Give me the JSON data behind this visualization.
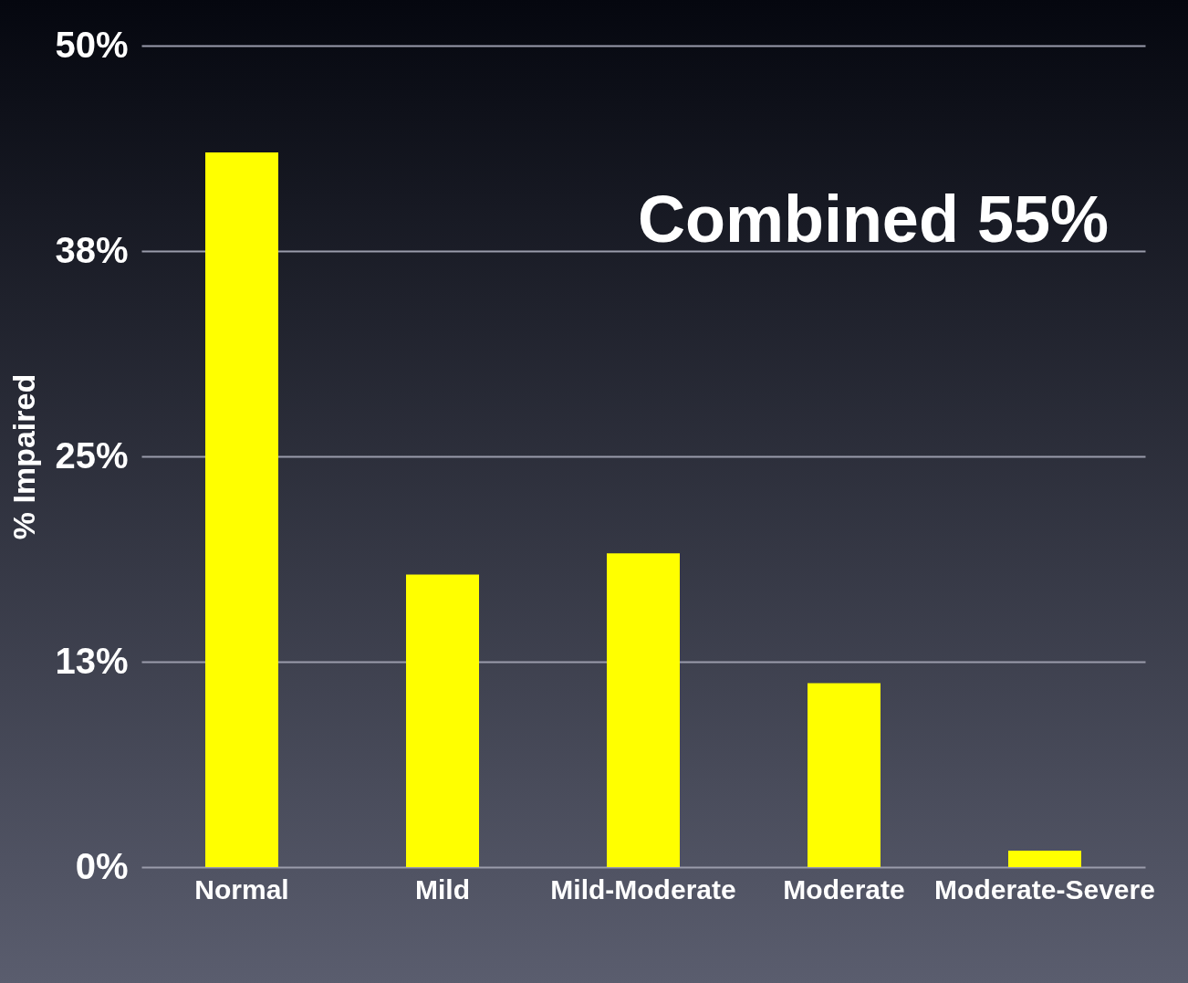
{
  "chart_data": {
    "type": "bar",
    "ylabel": "% Impaired",
    "categories": [
      "Normal",
      "Mild",
      "Mild-Moderate",
      "Moderate",
      "Moderate-Severe"
    ],
    "values": [
      43.5,
      17.8,
      19.1,
      11.2,
      1
    ],
    "color": "#ffff00",
    "ylim": [
      0,
      50
    ],
    "yticks": [
      {
        "value": 0,
        "label": "0%"
      },
      {
        "value": 12.5,
        "label": "13%"
      },
      {
        "value": 25,
        "label": "25%"
      },
      {
        "value": 37.5,
        "label": "38%"
      },
      {
        "value": 50,
        "label": "50%"
      }
    ],
    "grid": "y",
    "annotations": [
      "Combined 55%"
    ]
  }
}
